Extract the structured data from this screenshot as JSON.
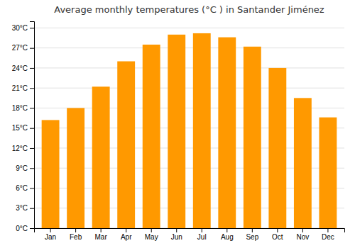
{
  "chart_data": {
    "type": "bar",
    "title": "Average monthly temperatures (°C ) in Santander Jiménez",
    "categories": [
      "Jan",
      "Feb",
      "Mar",
      "Apr",
      "May",
      "Jun",
      "Jul",
      "Aug",
      "Sep",
      "Oct",
      "Nov",
      "Dec"
    ],
    "values": [
      16.2,
      18.0,
      21.2,
      25.0,
      27.5,
      29.0,
      29.2,
      28.6,
      27.2,
      24.0,
      19.5,
      16.6
    ],
    "color": "#FF9900",
    "ylim": [
      0,
      31
    ],
    "yticks": [
      {
        "value": 0,
        "label": "0°C"
      },
      {
        "value": 3,
        "label": "3°C"
      },
      {
        "value": 6,
        "label": "6°C"
      },
      {
        "value": 9,
        "label": "9°C"
      },
      {
        "value": 12,
        "label": "12°C"
      },
      {
        "value": 15,
        "label": "15°C"
      },
      {
        "value": 18,
        "label": "18°C"
      },
      {
        "value": 21,
        "label": "21°C"
      },
      {
        "value": 24,
        "label": "24°C"
      },
      {
        "value": 27,
        "label": "27°C"
      },
      {
        "value": 30,
        "label": "30°C"
      }
    ],
    "grid": true
  }
}
